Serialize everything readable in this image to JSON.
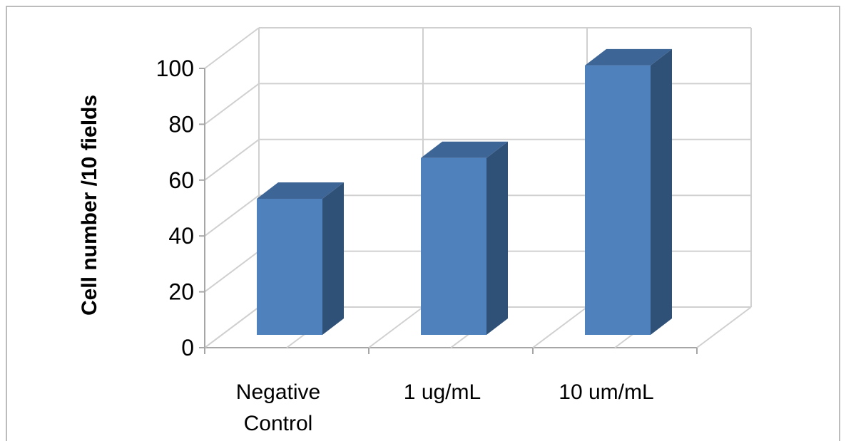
{
  "chart_data": {
    "type": "bar",
    "style": "3d-column",
    "categories": [
      "Negative Control",
      "1 ug/mL",
      "10 um/mL"
    ],
    "category_lines": [
      [
        "Negative",
        "Control"
      ],
      [
        "1 ug/mL"
      ],
      [
        "10 um/mL"
      ]
    ],
    "values": [
      50,
      65,
      99
    ],
    "title": "",
    "xlabel": "",
    "ylabel": "Cell number /10 fields",
    "ylim": [
      0,
      100
    ],
    "yticks": [
      0,
      20,
      40,
      60,
      80,
      100
    ],
    "yticklabels": [
      "0",
      "20",
      "40",
      "60",
      "80",
      "100"
    ],
    "grid": true,
    "legend": "none",
    "colors": {
      "bar_front": "#4f81bd",
      "bar_top": "#3d6595",
      "bar_side": "#2f5077",
      "grid": "#d0d0d0",
      "frame": "#a6a6a6"
    }
  }
}
